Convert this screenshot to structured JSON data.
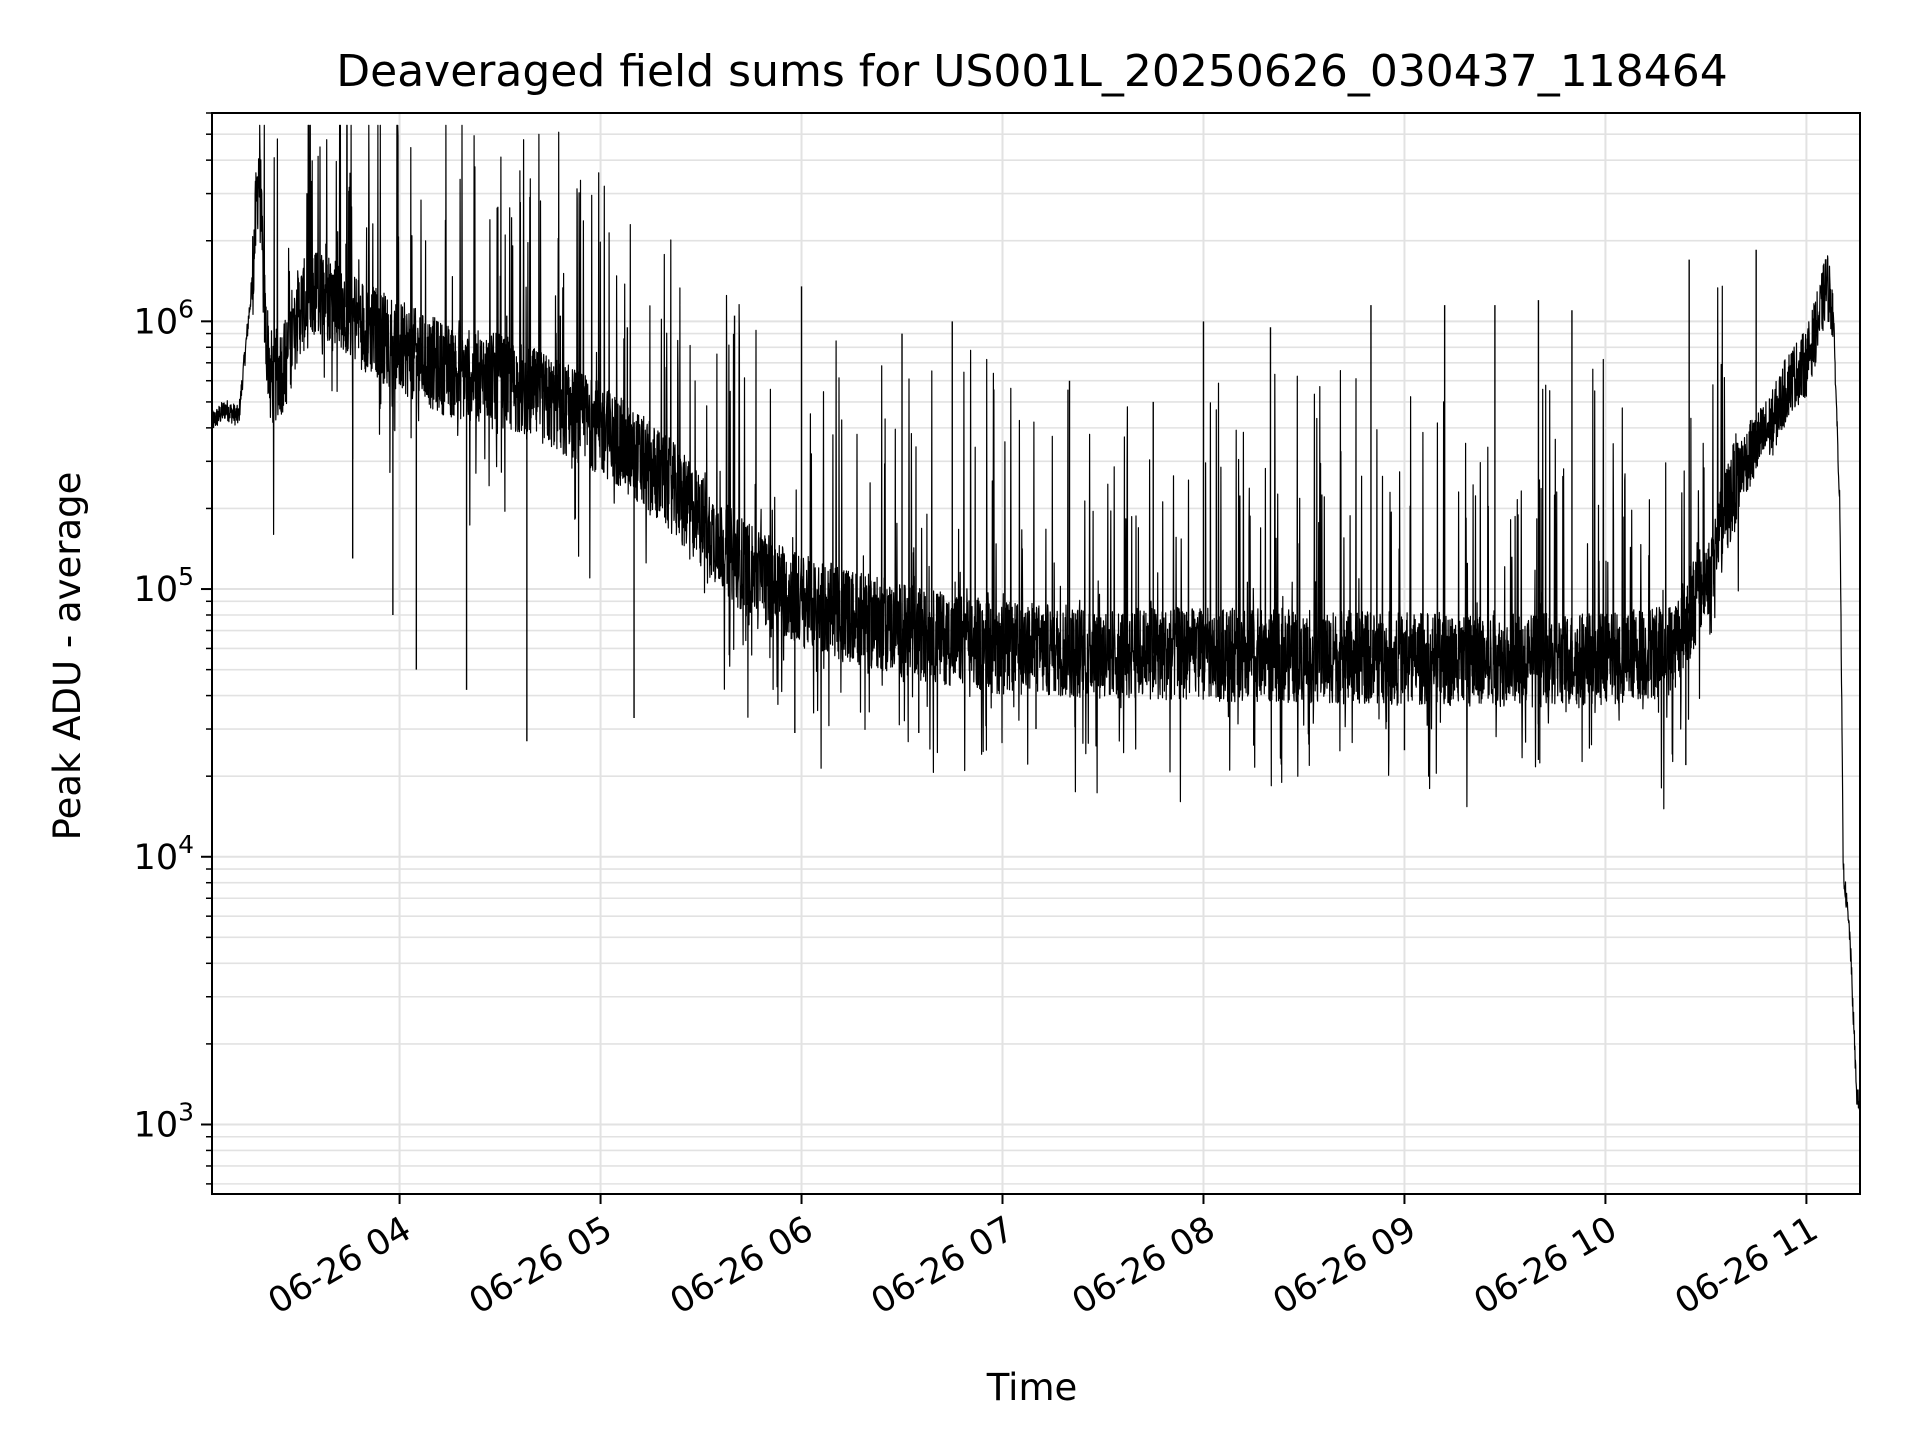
{
  "chart_data": {
    "type": "line",
    "title": "Deaveraged field sums for US001L_20250626_030437_118464",
    "xlabel": "Time",
    "ylabel": "Peak ADU - average",
    "yscale": "log",
    "ylim": [
      550,
      6000000
    ],
    "xlim": [
      "2025-06-26 03:04",
      "2025-06-26 11:16"
    ],
    "grid": true,
    "x_ticks": [
      {
        "time": "2025-06-26 04:00",
        "label": "06-26 04"
      },
      {
        "time": "2025-06-26 05:00",
        "label": "06-26 05"
      },
      {
        "time": "2025-06-26 06:00",
        "label": "06-26 06"
      },
      {
        "time": "2025-06-26 07:00",
        "label": "06-26 07"
      },
      {
        "time": "2025-06-26 08:00",
        "label": "06-26 08"
      },
      {
        "time": "2025-06-26 09:00",
        "label": "06-26 09"
      },
      {
        "time": "2025-06-26 10:00",
        "label": "06-26 10"
      },
      {
        "time": "2025-06-26 11:00",
        "label": "06-26 11"
      }
    ],
    "y_ticks": [
      {
        "value": 1000,
        "base": "10",
        "exp": "3"
      },
      {
        "value": 10000,
        "base": "10",
        "exp": "4"
      },
      {
        "value": 100000,
        "base": "10",
        "exp": "5"
      },
      {
        "value": 1000000,
        "base": "10",
        "exp": "6"
      }
    ],
    "series": [
      {
        "color": "#000000",
        "points": [
          [
            "2025-06-26 03:04",
            420000
          ],
          [
            "2025-06-26 03:08",
            470000
          ],
          [
            "2025-06-26 03:12",
            440000
          ],
          [
            "2025-06-26 03:16",
            1400000
          ],
          [
            "2025-06-26 03:18",
            3800000
          ],
          [
            "2025-06-26 03:20",
            900000
          ],
          [
            "2025-06-26 03:22",
            600000
          ],
          [
            "2025-06-26 03:26",
            700000
          ],
          [
            "2025-06-26 03:30",
            1100000
          ],
          [
            "2025-06-26 03:36",
            1300000
          ],
          [
            "2025-06-26 03:42",
            1200000
          ],
          [
            "2025-06-26 03:48",
            1000000
          ],
          [
            "2025-06-26 04:00",
            800000
          ],
          [
            "2025-06-26 04:15",
            650000
          ],
          [
            "2025-06-26 04:30",
            600000
          ],
          [
            "2025-06-26 04:45",
            500000
          ],
          [
            "2025-06-26 05:00",
            400000
          ],
          [
            "2025-06-26 05:20",
            250000
          ],
          [
            "2025-06-26 05:40",
            130000
          ],
          [
            "2025-06-26 06:00",
            90000
          ],
          [
            "2025-06-26 06:30",
            70000
          ],
          [
            "2025-06-26 07:00",
            60000
          ],
          [
            "2025-06-26 07:30",
            58000
          ],
          [
            "2025-06-26 08:00",
            57000
          ],
          [
            "2025-06-26 08:30",
            56000
          ],
          [
            "2025-06-26 09:00",
            55000
          ],
          [
            "2025-06-26 09:30",
            54000
          ],
          [
            "2025-06-26 10:00",
            55000
          ],
          [
            "2025-06-26 10:20",
            60000
          ],
          [
            "2025-06-26 10:30",
            110000
          ],
          [
            "2025-06-26 10:40",
            280000
          ],
          [
            "2025-06-26 10:50",
            420000
          ],
          [
            "2025-06-26 10:55",
            600000
          ],
          [
            "2025-06-26 11:00",
            700000
          ],
          [
            "2025-06-26 11:04",
            1050000
          ],
          [
            "2025-06-26 11:06",
            1400000
          ],
          [
            "2025-06-26 11:08",
            1100000
          ],
          [
            "2025-06-26 11:10",
            200000
          ],
          [
            "2025-06-26 11:11",
            9000
          ],
          [
            "2025-06-26 11:13",
            5000
          ],
          [
            "2025-06-26 11:15",
            1300
          ],
          [
            "2025-06-26 11:16",
            1150
          ]
        ],
        "spikes": [
          [
            "2025-06-26 03:38",
            1950000
          ],
          [
            "2025-06-26 03:44",
            1950000
          ],
          [
            "2025-06-26 04:32",
            1050000
          ],
          [
            "2025-06-26 04:48",
            1050000
          ],
          [
            "2025-06-26 05:08",
            950000
          ],
          [
            "2025-06-26 05:40",
            1050000
          ],
          [
            "2025-06-26 06:00",
            1350000
          ],
          [
            "2025-06-26 06:30",
            900000
          ],
          [
            "2025-06-26 06:45",
            1000000
          ],
          [
            "2025-06-26 07:20",
            600000
          ],
          [
            "2025-06-26 07:45",
            500000
          ],
          [
            "2025-06-26 08:00",
            1000000
          ],
          [
            "2025-06-26 08:20",
            950000
          ],
          [
            "2025-06-26 08:50",
            1150000
          ],
          [
            "2025-06-26 09:12",
            1150000
          ],
          [
            "2025-06-26 09:27",
            1150000
          ],
          [
            "2025-06-26 09:40",
            1200000
          ],
          [
            "2025-06-26 09:50",
            1100000
          ],
          [
            "2025-06-26 10:25",
            1700000
          ],
          [
            "2025-06-26 10:45",
            1850000
          ]
        ],
        "dips": [
          [
            "2025-06-26 03:46",
            130000
          ],
          [
            "2025-06-26 03:58",
            80000
          ],
          [
            "2025-06-26 04:05",
            50000
          ],
          [
            "2025-06-26 04:20",
            42000
          ],
          [
            "2025-06-26 04:38",
            27000
          ],
          [
            "2025-06-26 05:10",
            33000
          ],
          [
            "2025-06-26 05:58",
            29000
          ],
          [
            "2025-06-26 06:35",
            29000
          ],
          [
            "2025-06-26 07:10",
            30000
          ],
          [
            "2025-06-26 08:15",
            26000
          ],
          [
            "2025-06-26 09:00",
            25000
          ],
          [
            "2025-06-26 09:40",
            23000
          ],
          [
            "2025-06-26 10:24",
            22000
          ]
        ]
      }
    ]
  }
}
